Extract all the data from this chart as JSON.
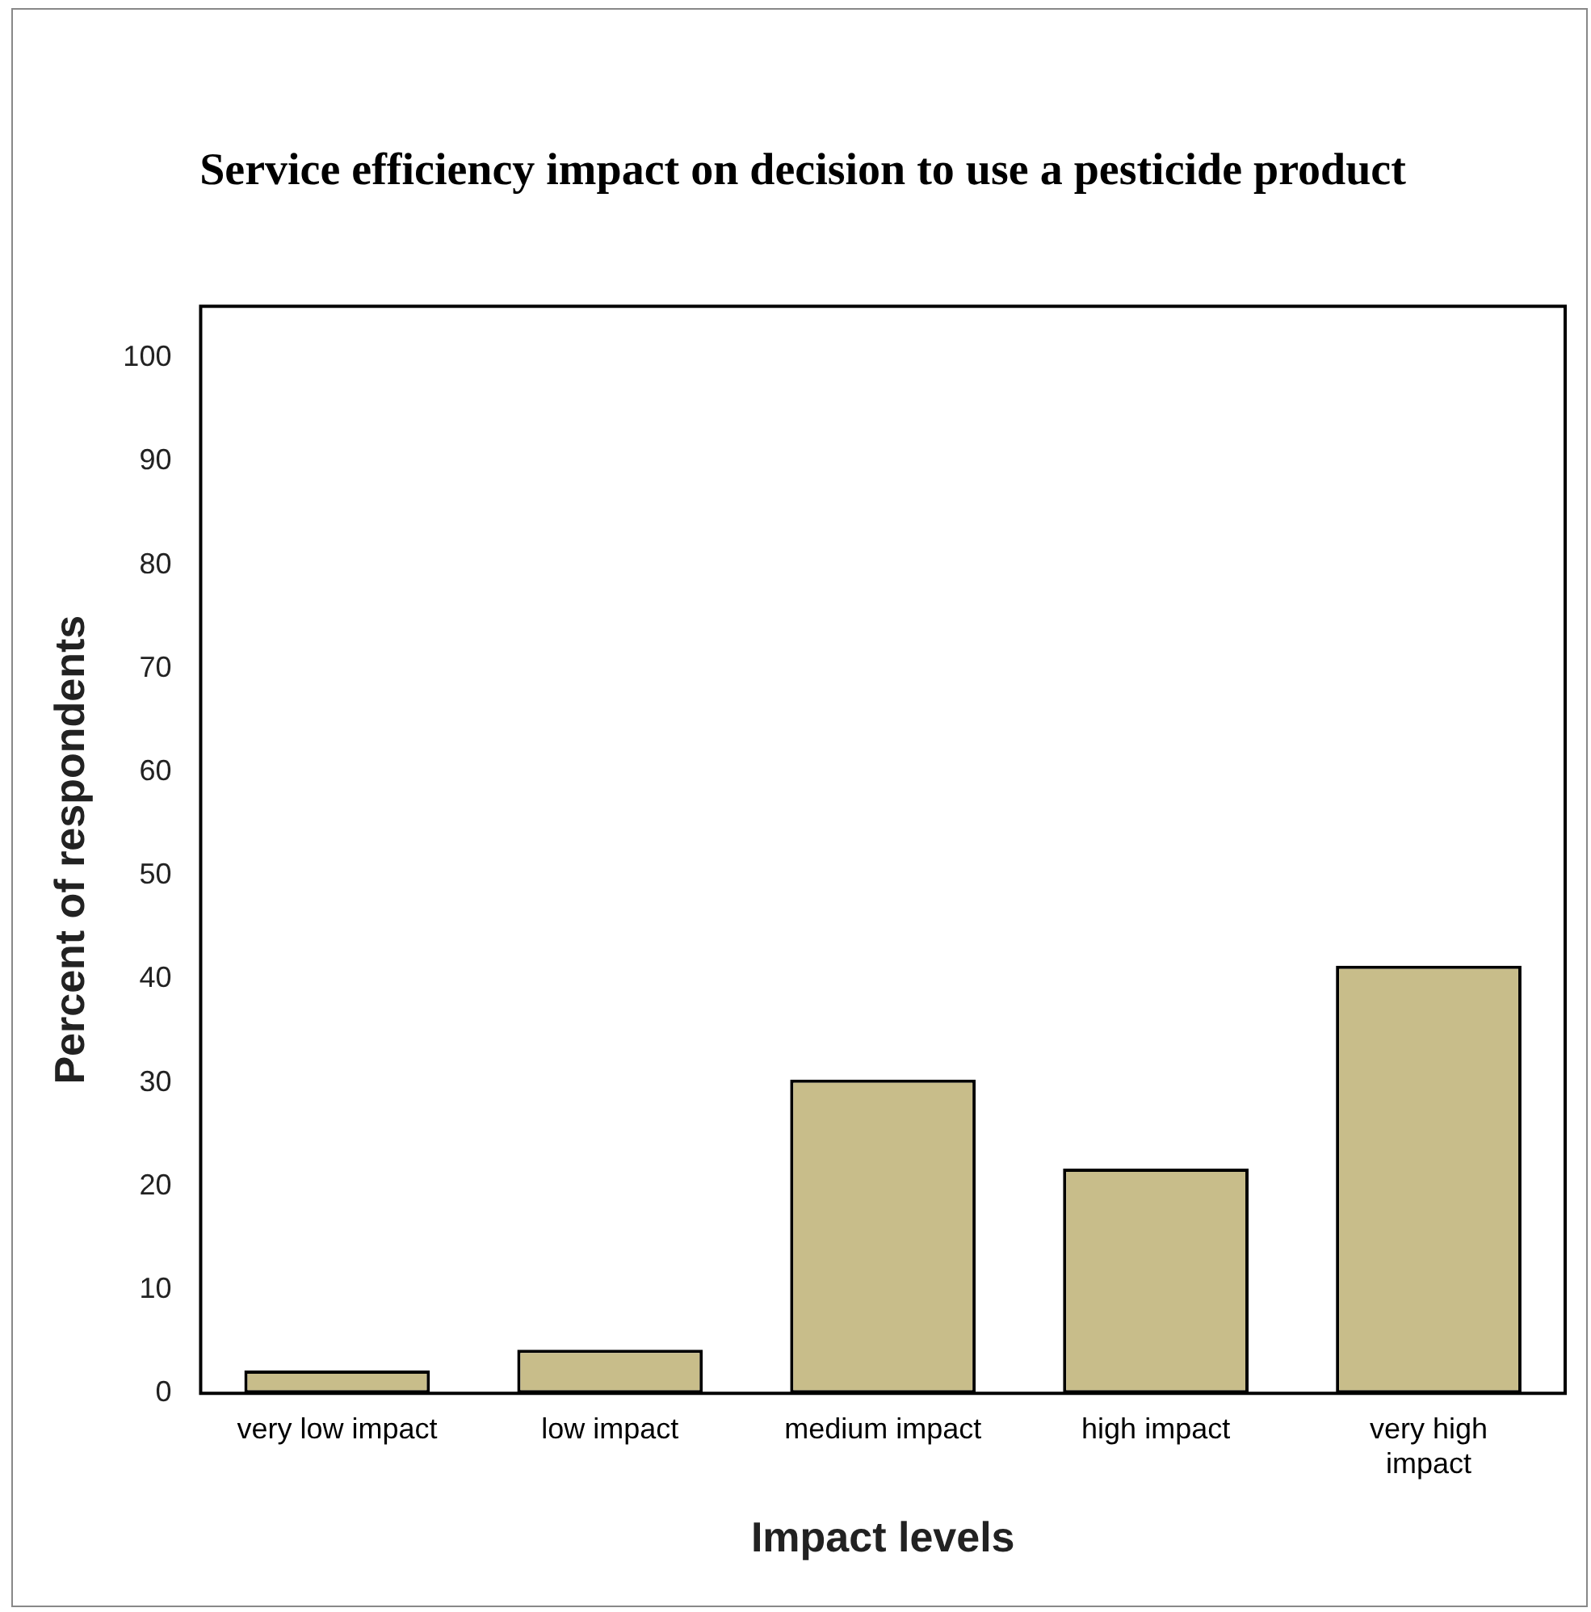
{
  "chart_data": {
    "type": "bar",
    "title": "Service efficiency impact on decision to use a pesticide product",
    "xlabel": "Impact levels",
    "ylabel": "Percent of respondents",
    "categories": [
      "very low impact",
      "low impact",
      "medium impact",
      "high impact",
      "very high impact"
    ],
    "values": [
      2.2,
      4.2,
      30.3,
      21.7,
      41.3
    ],
    "color": "#c8bd8a",
    "ylim": [
      0,
      105
    ],
    "yticks": [
      0,
      10,
      20,
      30,
      40,
      50,
      60,
      70,
      80,
      90,
      100
    ],
    "grid": false,
    "legend": false
  }
}
